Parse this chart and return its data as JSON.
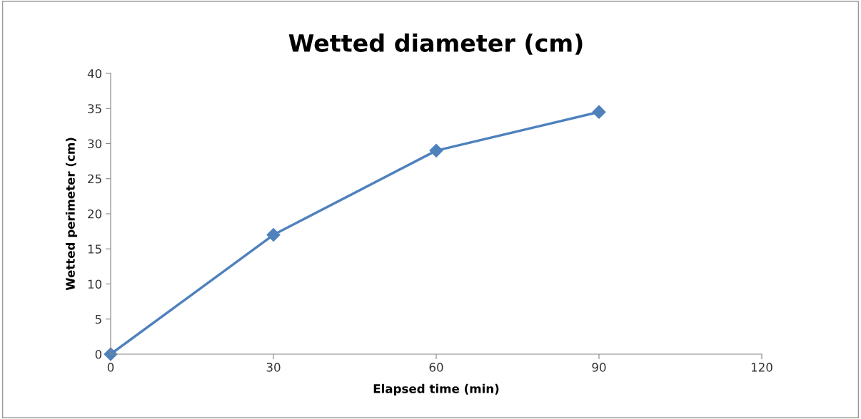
{
  "chart_data": {
    "type": "line",
    "title": "Wetted diameter (cm)",
    "xlabel": "Elapsed time (min)",
    "ylabel": "Wetted perimeter (cm)",
    "x": [
      0,
      30,
      60,
      90
    ],
    "series": [
      {
        "color": "#4f81bd",
        "values": [
          0,
          17,
          29,
          34.5
        ]
      }
    ],
    "xlim": [
      0,
      120
    ],
    "xticks": [
      0,
      30,
      60,
      90,
      120
    ],
    "ylim": [
      0,
      40
    ],
    "yticks": [
      0,
      5,
      10,
      15,
      20,
      25,
      30,
      35,
      40
    ],
    "grid": false,
    "legend": false,
    "marker": "diamond",
    "line_style": "solid"
  }
}
